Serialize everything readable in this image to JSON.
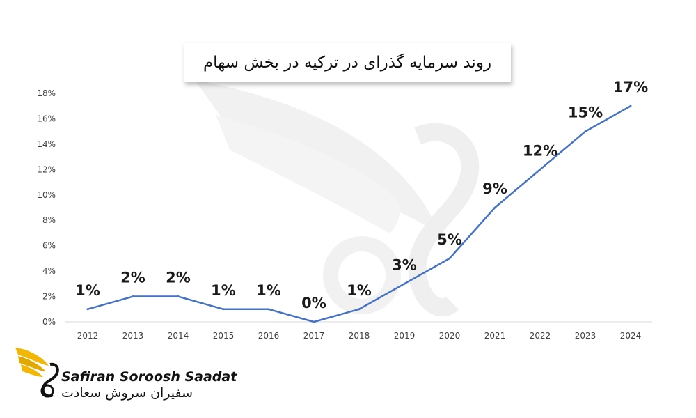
{
  "chart_data": {
    "type": "line",
    "title": "روند سرمایه گذرای در ترکیه در بخش سهام",
    "categories": [
      "2012",
      "2013",
      "2014",
      "2015",
      "2016",
      "2017",
      "2018",
      "2019",
      "2020",
      "2021",
      "2022",
      "2023",
      "2024"
    ],
    "series": [
      {
        "values": [
          1,
          2,
          2,
          1,
          1,
          0,
          1,
          3,
          5,
          9,
          12,
          15,
          17
        ]
      }
    ],
    "data_labels": [
      "1%",
      "2%",
      "2%",
      "1%",
      "1%",
      "0%",
      "1%",
      "3%",
      "5%",
      "9%",
      "12%",
      "15%",
      "17%"
    ],
    "y_ticks": [
      "0%",
      "2%",
      "4%",
      "6%",
      "8%",
      "10%",
      "12%",
      "14%",
      "16%",
      "18%"
    ],
    "ylim": [
      0,
      18
    ],
    "grid": false,
    "line_color": "#4472C4"
  },
  "brand": {
    "name_en": "Safiran Soroosh Saadat",
    "name_fa": "سفیران سروش سعادت",
    "accent": "#F2B705"
  }
}
